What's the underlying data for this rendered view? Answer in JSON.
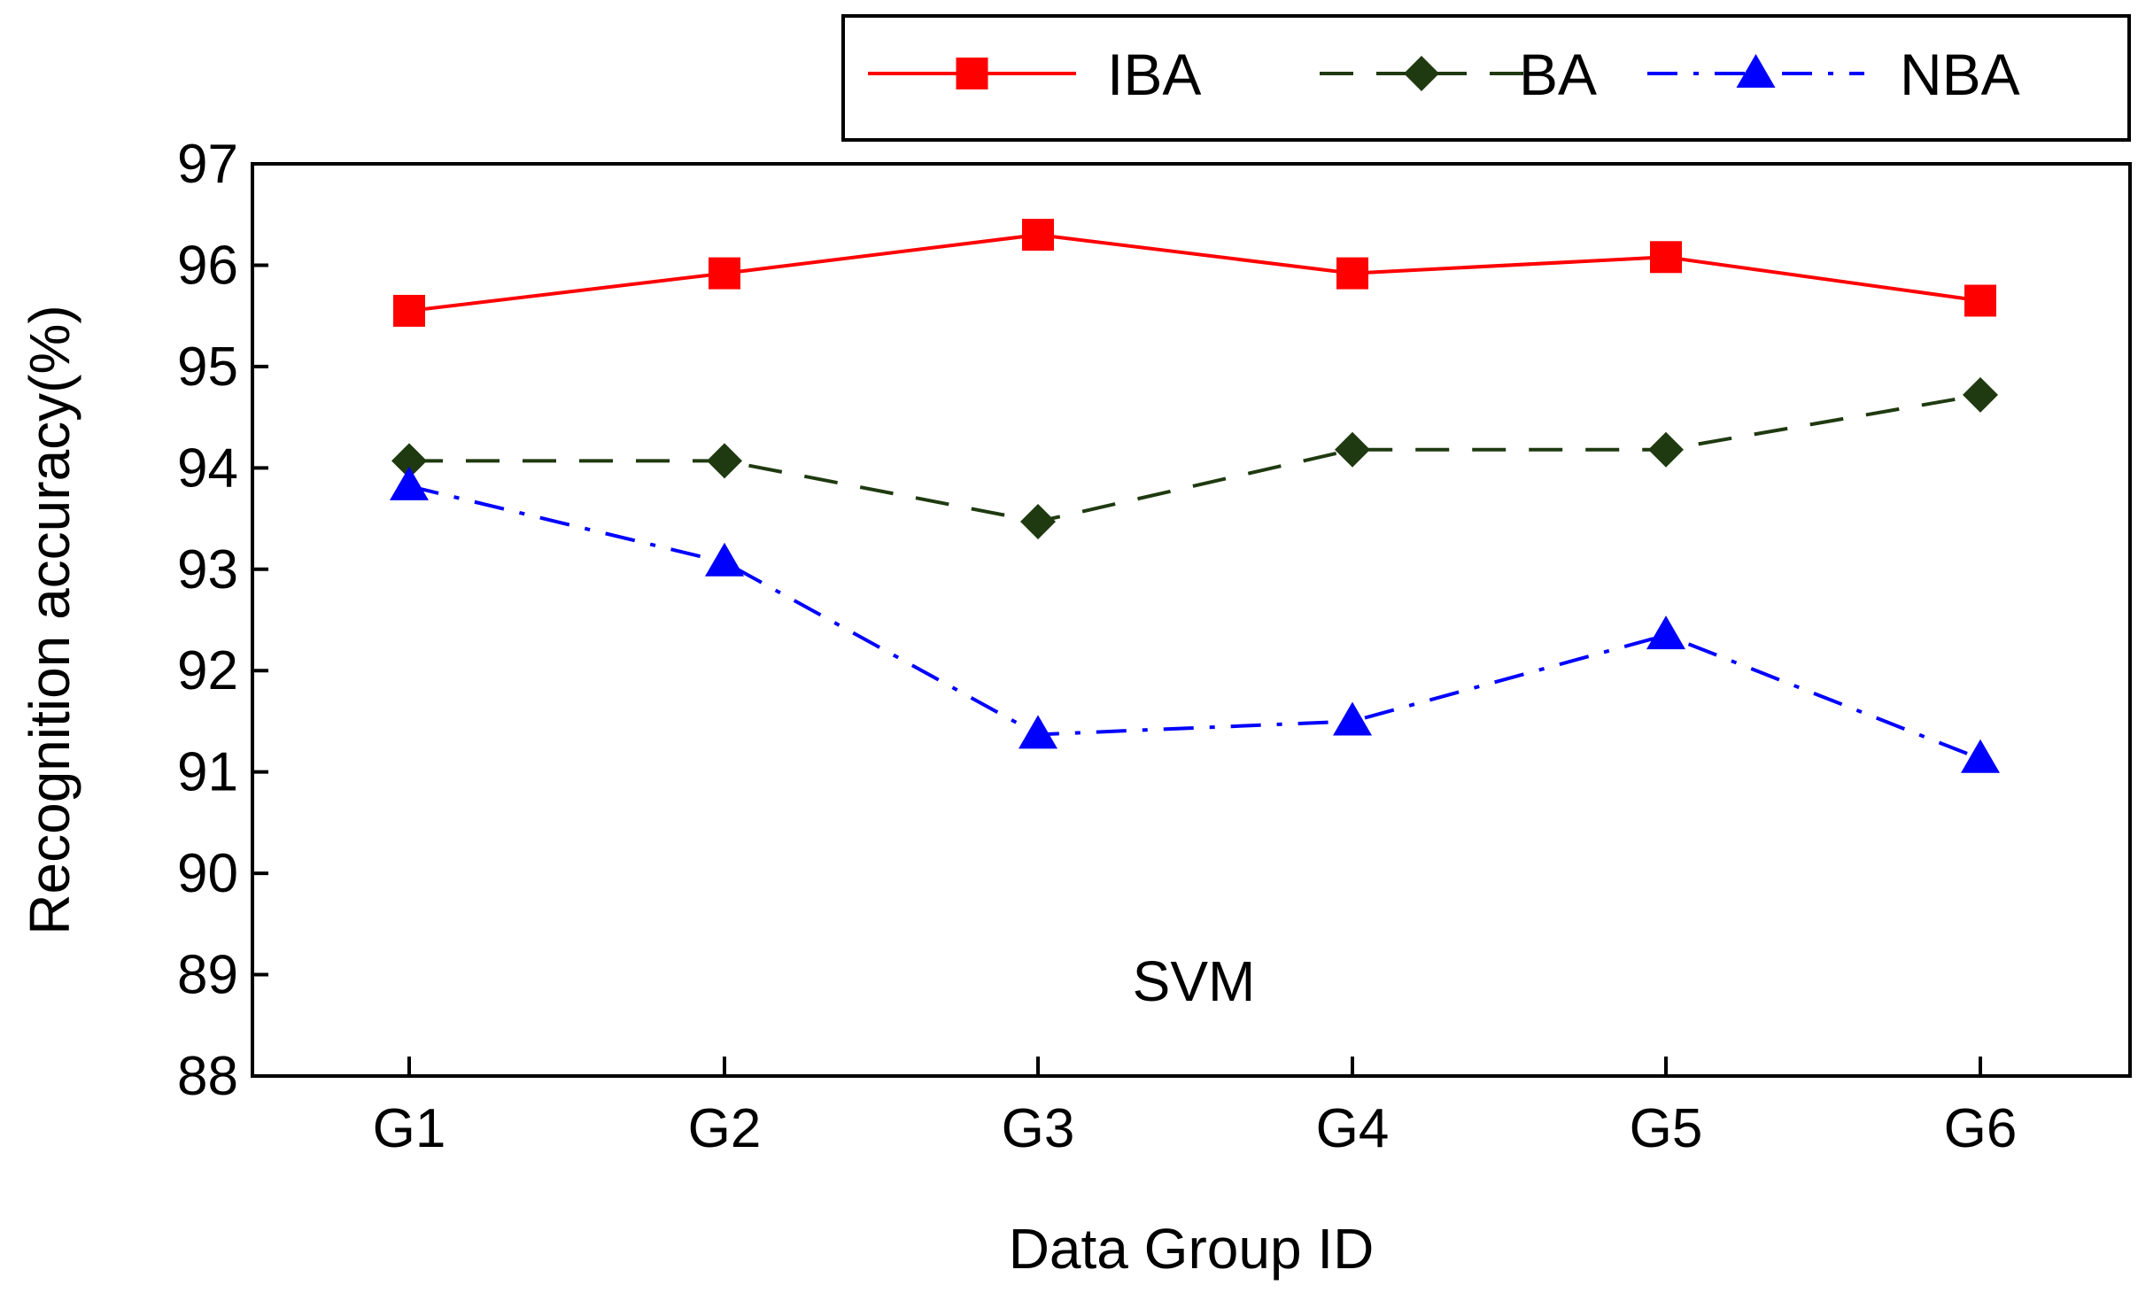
{
  "chart_data": {
    "type": "line",
    "title": "",
    "xlabel": "Data Group ID",
    "ylabel": "Recognition accuracy(%)",
    "categories": [
      "G1",
      "G2",
      "G3",
      "G4",
      "G5",
      "G6"
    ],
    "ylim": [
      88,
      97
    ],
    "yticks": [
      88,
      89,
      90,
      91,
      92,
      93,
      94,
      95,
      96,
      97
    ],
    "grid": false,
    "legend_position": "top",
    "annotation": "SVM",
    "series": [
      {
        "name": "IBA",
        "color": "#ff0000",
        "line_style": "solid",
        "marker": "square",
        "values": [
          95.55,
          95.92,
          96.3,
          95.92,
          96.08,
          95.65
        ]
      },
      {
        "name": "BA",
        "color": "#1f3a10",
        "line_style": "dashed",
        "marker": "diamond",
        "values": [
          94.07,
          94.07,
          93.47,
          94.18,
          94.18,
          94.72
        ]
      },
      {
        "name": "NBA",
        "color": "#0000ff",
        "line_style": "dashdot",
        "marker": "triangle",
        "values": [
          93.82,
          93.07,
          91.37,
          91.5,
          92.35,
          91.13
        ]
      }
    ]
  }
}
